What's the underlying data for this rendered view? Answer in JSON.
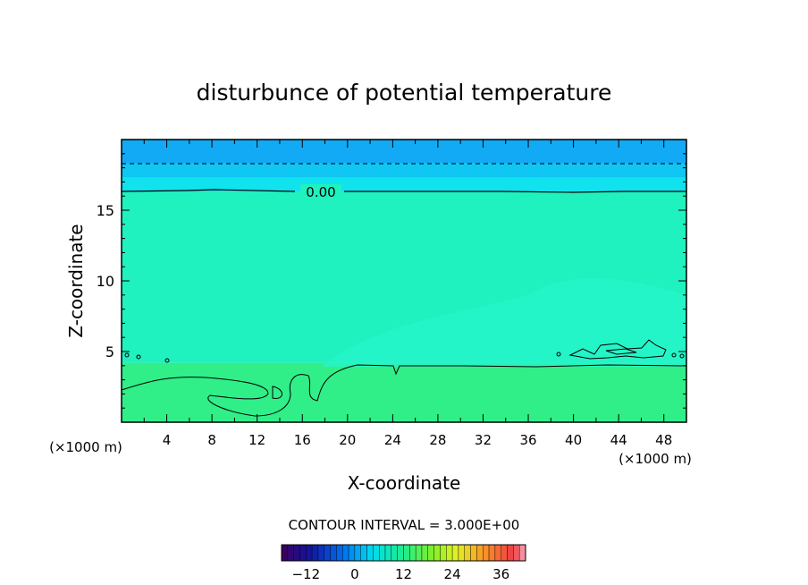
{
  "chart_data": {
    "type": "heatmap",
    "title": "disturbunce of potential temperature",
    "xlabel": "X-coordinate",
    "ylabel": "Z-coordinate",
    "x_unit_left": "(×1000 m)",
    "x_unit_right": "(×1000 m)",
    "xlim": [
      0,
      50
    ],
    "ylim": [
      0,
      20
    ],
    "x_ticks": [
      "4",
      "8",
      "12",
      "16",
      "20",
      "24",
      "28",
      "32",
      "36",
      "40",
      "44",
      "48"
    ],
    "y_ticks": [
      "5",
      "10",
      "15"
    ],
    "contour_label": "0.00",
    "contour_interval_text": "CONTOUR INTERVAL = 3.000E+00",
    "colorbar": {
      "range": [
        -18,
        42
      ],
      "ticks": [
        "-12",
        "0",
        "12",
        "24",
        "36"
      ]
    },
    "layers": [
      {
        "z_from": 0,
        "z_to": 4.2,
        "value": 1.5,
        "color": "#30ee88"
      },
      {
        "z_from": 4.2,
        "z_to": 16.3,
        "value": -1.5,
        "color": "#1ff2be"
      },
      {
        "z_from": 16.3,
        "z_to": 17.3,
        "value": -4.5,
        "color": "#10e2ee"
      },
      {
        "z_from": 17.3,
        "z_to": 18.3,
        "value": -7.5,
        "color": "#10c6f2"
      },
      {
        "z_from": 18.3,
        "z_to": 20,
        "value": -10.5,
        "color": "#12aaf4"
      }
    ]
  }
}
